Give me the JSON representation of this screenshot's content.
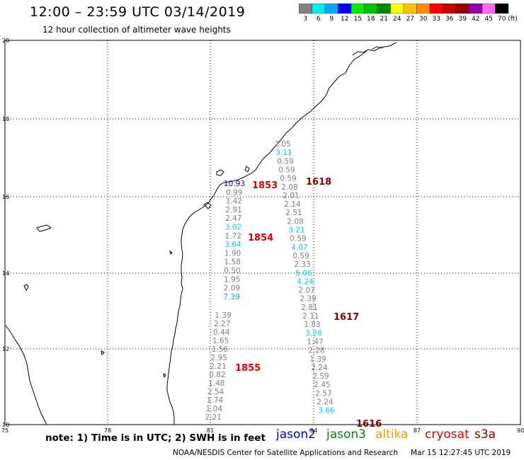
{
  "header": {
    "title": "12:00 – 23:59 UTC 03/14/2019",
    "subtitle": "12 hour collection of altimeter wave heights"
  },
  "scale": {
    "unit_label": "(ft)",
    "bins": [
      {
        "label": "3",
        "color": "#808080"
      },
      {
        "label": "6",
        "color": "#00eeee"
      },
      {
        "label": "9",
        "color": "#00a8ff"
      },
      {
        "label": "12",
        "color": "#0000ff"
      },
      {
        "label": "15",
        "color": "#00ee00"
      },
      {
        "label": "18",
        "color": "#00c400"
      },
      {
        "label": "21",
        "color": "#008c00"
      },
      {
        "label": "24",
        "color": "#ffff00"
      },
      {
        "label": "27",
        "color": "#ffc000"
      },
      {
        "label": "30",
        "color": "#ff8c00"
      },
      {
        "label": "33",
        "color": "#ff0000"
      },
      {
        "label": "36",
        "color": "#cc0000"
      },
      {
        "label": "39",
        "color": "#990000"
      },
      {
        "label": "42",
        "color": "#9900aa"
      },
      {
        "label": "45",
        "color": "#ff66ff"
      },
      {
        "label": "70",
        "color": "#000000"
      }
    ]
  },
  "map": {
    "lat_labels": [
      "20",
      "18",
      "16",
      "14",
      "12",
      "10"
    ],
    "lon_labels": [
      "75",
      "78",
      "81",
      "84",
      "87",
      "90"
    ]
  },
  "tracks": [
    {
      "name": "track-a",
      "values": [
        {
          "v": "10.93",
          "c": "#0000ff"
        },
        {
          "v": "0.99",
          "c": "#808080"
        },
        {
          "v": "1.42",
          "c": "#808080"
        },
        {
          "v": "2.91",
          "c": "#808080"
        },
        {
          "v": "2.47",
          "c": "#808080"
        },
        {
          "v": "3.02",
          "c": "#00ccee"
        },
        {
          "v": "1.72",
          "c": "#808080"
        },
        {
          "v": "3.64",
          "c": "#00ccee"
        },
        {
          "v": "1.90",
          "c": "#808080"
        },
        {
          "v": "1.58",
          "c": "#808080"
        },
        {
          "v": "0.50",
          "c": "#808080"
        },
        {
          "v": "1.95",
          "c": "#808080"
        },
        {
          "v": "2.09",
          "c": "#808080"
        },
        {
          "v": "7.39",
          "c": "#00a8ff"
        }
      ]
    },
    {
      "name": "track-b",
      "values": [
        {
          "v": "1.39",
          "c": "#808080"
        },
        {
          "v": "2.27",
          "c": "#808080"
        },
        {
          "v": "0.44",
          "c": "#808080"
        },
        {
          "v": "1.65",
          "c": "#808080"
        },
        {
          "v": "1.56",
          "c": "#808080"
        },
        {
          "v": "2.95",
          "c": "#808080"
        },
        {
          "v": "2.21",
          "c": "#808080"
        },
        {
          "v": "0.82",
          "c": "#808080"
        },
        {
          "v": "1.48",
          "c": "#808080"
        },
        {
          "v": "2.54",
          "c": "#808080"
        },
        {
          "v": "1.74",
          "c": "#808080"
        },
        {
          "v": "1.04",
          "c": "#808080"
        },
        {
          "v": "2.21",
          "c": "#808080"
        }
      ]
    },
    {
      "name": "track-c",
      "values": [
        {
          "v": "2.05",
          "c": "#808080"
        },
        {
          "v": "3.11",
          "c": "#00ccee"
        },
        {
          "v": "0.59",
          "c": "#808080"
        },
        {
          "v": "0.59",
          "c": "#808080"
        },
        {
          "v": "0.59",
          "c": "#808080"
        },
        {
          "v": "2.08",
          "c": "#808080"
        },
        {
          "v": "2.01",
          "c": "#808080"
        },
        {
          "v": "2.14",
          "c": "#808080"
        },
        {
          "v": "2.51",
          "c": "#808080"
        },
        {
          "v": "2.08",
          "c": "#808080"
        },
        {
          "v": "3.21",
          "c": "#00ccee"
        },
        {
          "v": "0.59",
          "c": "#808080"
        },
        {
          "v": "4.07",
          "c": "#00ccee"
        },
        {
          "v": "0.59",
          "c": "#808080"
        },
        {
          "v": "2.33",
          "c": "#808080"
        },
        {
          "v": "5.06",
          "c": "#00ccee"
        },
        {
          "v": "4.24",
          "c": "#00ccee"
        },
        {
          "v": "2.07",
          "c": "#808080"
        },
        {
          "v": "2.39",
          "c": "#808080"
        },
        {
          "v": "2.81",
          "c": "#808080"
        },
        {
          "v": "2.11",
          "c": "#808080"
        },
        {
          "v": "1.83",
          "c": "#808080"
        },
        {
          "v": "3.28",
          "c": "#00ccee"
        },
        {
          "v": "1.47",
          "c": "#808080"
        },
        {
          "v": "2.28",
          "c": "#808080"
        },
        {
          "v": "1.39",
          "c": "#808080"
        },
        {
          "v": "2.24",
          "c": "#808080"
        },
        {
          "v": "2.59",
          "c": "#808080"
        },
        {
          "v": "2.45",
          "c": "#808080"
        },
        {
          "v": "2.57",
          "c": "#808080"
        },
        {
          "v": "2.24",
          "c": "#808080"
        },
        {
          "v": "3.66",
          "c": "#00ccee"
        }
      ]
    }
  ],
  "time_labels": [
    {
      "text": "1853",
      "color": "#dd0000"
    },
    {
      "text": "1854",
      "color": "#dd0000"
    },
    {
      "text": "1855",
      "color": "#dd0000"
    },
    {
      "text": "1618",
      "color": "#880000"
    },
    {
      "text": "1617",
      "color": "#880000"
    },
    {
      "text": "1616",
      "color": "#880000"
    }
  ],
  "footer": {
    "note": "note: 1) Time is in UTC; 2) SWH is in feet",
    "satellites": [
      {
        "name": "jason2",
        "color": "#0000cc"
      },
      {
        "name": "jason3",
        "color": "#008800"
      },
      {
        "name": "altika",
        "color": "#ff9900"
      },
      {
        "name": "cryosat",
        "color": "#dd0000"
      },
      {
        "name": "s3a",
        "color": "#880000"
      }
    ],
    "credit": "NOAA/NESDIS Center for Satellite Applications and Research",
    "timestamp": "Mar 15 12:27:45 UTC 2019"
  }
}
